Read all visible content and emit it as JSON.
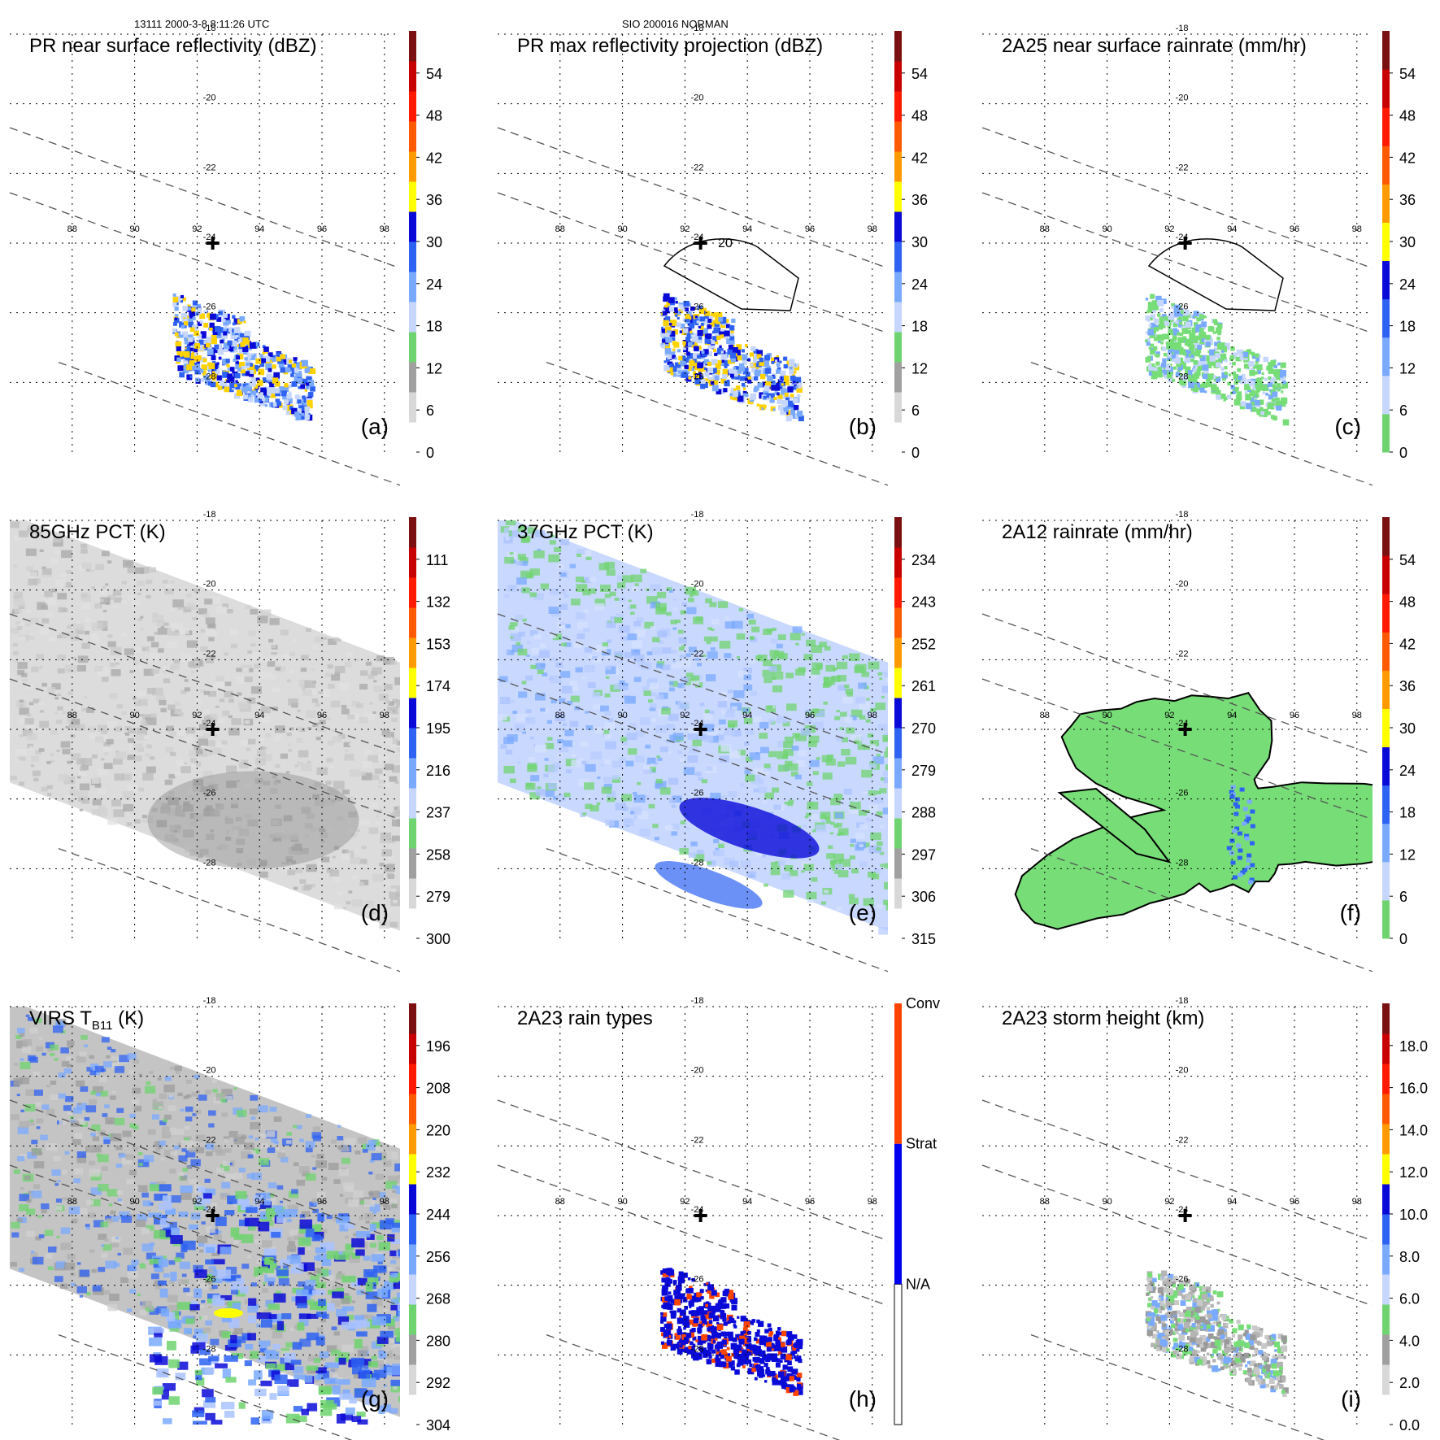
{
  "header": {
    "left": "13111 2000-3-8 8:11:26 UTC",
    "center": "SIO 200016 NORMAN"
  },
  "chart_data": [
    {
      "type": "heatmap",
      "panel": "(a)",
      "title": "PR near surface reflectivity (dBZ)",
      "colorbar_ticks": [
        "0",
        "6",
        "12",
        "18",
        "24",
        "30",
        "36",
        "42",
        "48",
        "54"
      ],
      "lon_ticks": [
        "88",
        "90",
        "92",
        "94",
        "96",
        "98"
      ],
      "lat_ticks": [
        "-18",
        "-20",
        "-22",
        "-24",
        "-26",
        "-28"
      ],
      "xlim": [
        86,
        98.5
      ],
      "ylim": [
        -30,
        -18
      ],
      "storm_center": [
        92.5,
        -24
      ]
    },
    {
      "type": "heatmap",
      "panel": "(b)",
      "title": "PR max reflectivity projection (dBZ)",
      "colorbar_ticks": [
        "0",
        "6",
        "12",
        "18",
        "24",
        "30",
        "36",
        "42",
        "48",
        "54"
      ],
      "lon_ticks": [
        "88",
        "90",
        "92",
        "94",
        "96",
        "98"
      ],
      "lat_ticks": [
        "-18",
        "-20",
        "-22",
        "-24",
        "-26",
        "-28"
      ],
      "xlim": [
        86,
        98.5
      ],
      "ylim": [
        -30,
        -18
      ],
      "storm_center": [
        92.5,
        -24
      ],
      "contour_label": "20"
    },
    {
      "type": "heatmap",
      "panel": "(c)",
      "title": "2A25 near surface rainrate (mm/hr)",
      "colorbar_ticks": [
        "0",
        "6",
        "12",
        "18",
        "24",
        "30",
        "36",
        "42",
        "48",
        "54"
      ],
      "lon_ticks": [
        "88",
        "90",
        "92",
        "94",
        "96",
        "98"
      ],
      "lat_ticks": [
        "-18",
        "-20",
        "-22",
        "-24",
        "-26",
        "-28"
      ],
      "xlim": [
        86,
        98.5
      ],
      "ylim": [
        -30,
        -18
      ],
      "storm_center": [
        92.5,
        -24
      ]
    },
    {
      "type": "heatmap",
      "panel": "(d)",
      "title": "85GHz PCT (K)",
      "colorbar_ticks": [
        "300",
        "279",
        "258",
        "237",
        "216",
        "195",
        "174",
        "153",
        "132",
        "111"
      ],
      "lon_ticks": [
        "88",
        "90",
        "92",
        "94",
        "96",
        "98"
      ],
      "lat_ticks": [
        "-18",
        "-20",
        "-22",
        "-24",
        "-26",
        "-28"
      ],
      "xlim": [
        86,
        98.5
      ],
      "ylim": [
        -30,
        -18
      ],
      "storm_center": [
        92.5,
        -24
      ]
    },
    {
      "type": "heatmap",
      "panel": "(e)",
      "title": "37GHz PCT (K)",
      "colorbar_ticks": [
        "315",
        "306",
        "297",
        "288",
        "279",
        "270",
        "261",
        "252",
        "243",
        "234"
      ],
      "lon_ticks": [
        "88",
        "90",
        "92",
        "94",
        "96",
        "98"
      ],
      "lat_ticks": [
        "-18",
        "-20",
        "-22",
        "-24",
        "-26",
        "-28"
      ],
      "xlim": [
        86,
        98.5
      ],
      "ylim": [
        -30,
        -18
      ],
      "storm_center": [
        92.5,
        -24
      ]
    },
    {
      "type": "heatmap",
      "panel": "(f)",
      "title": "2A12 rainrate (mm/hr)",
      "colorbar_ticks": [
        "0",
        "6",
        "12",
        "18",
        "24",
        "30",
        "36",
        "42",
        "48",
        "54"
      ],
      "lon_ticks": [
        "88",
        "90",
        "92",
        "94",
        "96",
        "98"
      ],
      "lat_ticks": [
        "-18",
        "-20",
        "-22",
        "-24",
        "-26",
        "-28"
      ],
      "xlim": [
        86,
        98.5
      ],
      "ylim": [
        -30,
        -18
      ],
      "storm_center": [
        92.5,
        -24
      ]
    },
    {
      "type": "heatmap",
      "panel": "(g)",
      "title_main": "VIRS T",
      "title_sub": "B11",
      "title_unit": " (K)",
      "colorbar_ticks": [
        "304",
        "292",
        "280",
        "268",
        "256",
        "244",
        "232",
        "220",
        "208",
        "196"
      ],
      "lon_ticks": [
        "88",
        "90",
        "92",
        "94",
        "96",
        "98"
      ],
      "lat_ticks": [
        "-18",
        "-20",
        "-22",
        "-24",
        "-26",
        "-28"
      ],
      "xlim": [
        86,
        98.5
      ],
      "ylim": [
        -30,
        -18
      ],
      "storm_center": [
        92.5,
        -24
      ]
    },
    {
      "type": "heatmap",
      "panel": "(h)",
      "title": "2A23 rain types",
      "categories": [
        "N/A",
        "Strat",
        "Conv"
      ],
      "category_colors": [
        "#ffffff",
        "#0000ee",
        "#ff4400"
      ],
      "lon_ticks": [
        "88",
        "90",
        "92",
        "94",
        "96",
        "98"
      ],
      "lat_ticks": [
        "-18",
        "-20",
        "-22",
        "-24",
        "-26",
        "-28"
      ],
      "xlim": [
        86,
        98.5
      ],
      "ylim": [
        -30,
        -18
      ],
      "storm_center": [
        92.5,
        -24
      ]
    },
    {
      "type": "heatmap",
      "panel": "(i)",
      "title": "2A23 storm height (km)",
      "colorbar_ticks": [
        "0.0",
        "2.0",
        "4.0",
        "6.0",
        "8.0",
        "10.0",
        "12.0",
        "14.0",
        "16.0",
        "18.0"
      ],
      "lon_ticks": [
        "88",
        "90",
        "92",
        "94",
        "96",
        "98"
      ],
      "lat_ticks": [
        "-18",
        "-20",
        "-22",
        "-24",
        "-26",
        "-28"
      ],
      "xlim": [
        86,
        98.5
      ],
      "ylim": [
        -30,
        -18
      ],
      "storm_center": [
        92.5,
        -24
      ]
    }
  ],
  "colors": {
    "palette": [
      "#ffffff",
      "#e0e0e0",
      "#bcbcbc",
      "#8c8c8c",
      "#6fdc6f",
      "#5ccc5c",
      "#cfd9ff",
      "#a9c4ff",
      "#6da4ff",
      "#2a6cf0",
      "#1a3cde",
      "#0a0ad8",
      "#ffff00",
      "#ffd200",
      "#ffa000",
      "#ff6600",
      "#ff2000",
      "#d80000",
      "#a00000",
      "#6a1010",
      "#4a0c0c"
    ],
    "rain_conv": "#ff4400",
    "rain_strat": "#0000ee"
  }
}
